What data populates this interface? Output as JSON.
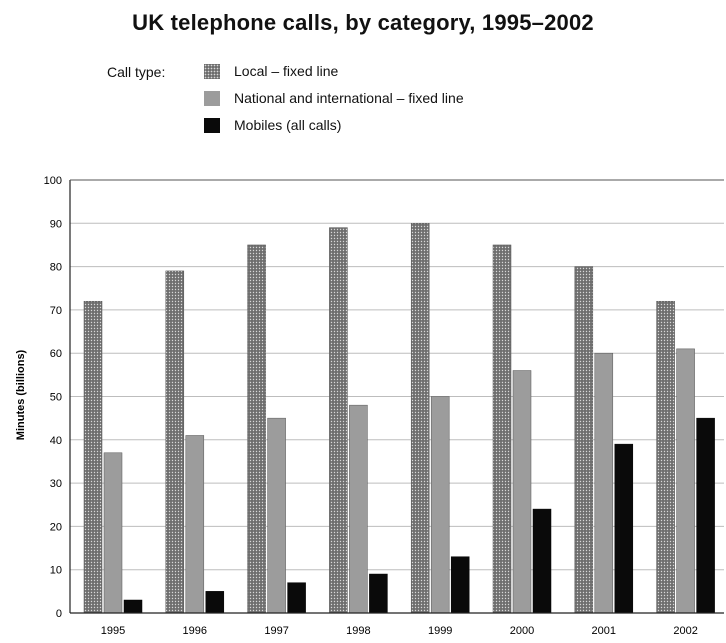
{
  "title": "UK telephone calls, by category, 1995–2002",
  "legend": {
    "caption": "Call type:",
    "items": [
      {
        "label": "Local – fixed line",
        "color": "#6e6e6e",
        "pattern": "dotted"
      },
      {
        "label": "National and international – fixed line",
        "color": "#9c9c9c"
      },
      {
        "label": "Mobiles (all calls)",
        "color": "#0a0a0a"
      }
    ]
  },
  "chart_data": {
    "type": "bar",
    "title": "UK telephone calls, by category, 1995–2002",
    "xlabel": "",
    "ylabel": "Minutes (billions)",
    "ylim": [
      0,
      100
    ],
    "yticks": [
      0,
      10,
      20,
      30,
      40,
      50,
      60,
      70,
      80,
      90,
      100
    ],
    "grid": true,
    "legend_position": "top",
    "categories": [
      "1995",
      "1996",
      "1997",
      "1998",
      "1999",
      "2000",
      "2001",
      "2002"
    ],
    "series": [
      {
        "name": "Local – fixed line",
        "values": [
          72,
          79,
          85,
          89,
          90,
          85,
          80,
          72
        ]
      },
      {
        "name": "National and international – fixed line",
        "values": [
          37,
          41,
          45,
          48,
          50,
          56,
          60,
          61
        ]
      },
      {
        "name": "Mobiles (all calls)",
        "values": [
          3,
          5,
          7,
          9,
          13,
          24,
          39,
          45
        ]
      }
    ]
  }
}
